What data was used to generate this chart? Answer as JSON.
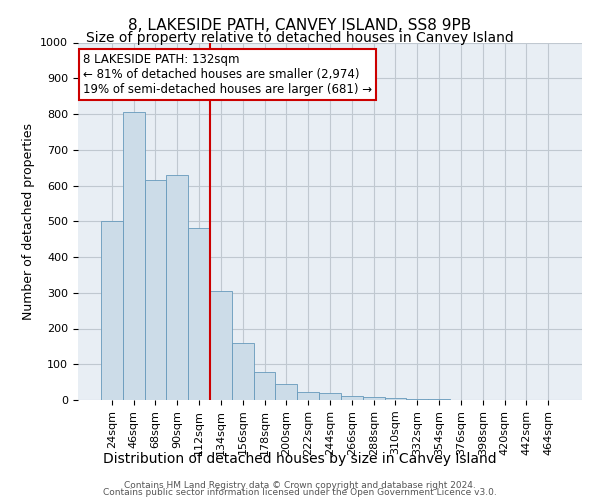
{
  "title": "8, LAKESIDE PATH, CANVEY ISLAND, SS8 9PB",
  "subtitle": "Size of property relative to detached houses in Canvey Island",
  "xlabel": "Distribution of detached houses by size in Canvey Island",
  "ylabel": "Number of detached properties",
  "footer_line1": "Contains HM Land Registry data © Crown copyright and database right 2024.",
  "footer_line2": "Contains public sector information licensed under the Open Government Licence v3.0.",
  "bar_labels": [
    "24sqm",
    "46sqm",
    "68sqm",
    "90sqm",
    "112sqm",
    "134sqm",
    "156sqm",
    "178sqm",
    "200sqm",
    "222sqm",
    "244sqm",
    "266sqm",
    "288sqm",
    "310sqm",
    "332sqm",
    "354sqm",
    "376sqm",
    "398sqm",
    "420sqm",
    "442sqm",
    "464sqm"
  ],
  "bar_values": [
    500,
    805,
    615,
    630,
    480,
    305,
    160,
    78,
    45,
    22,
    20,
    10,
    8,
    5,
    3,
    2,
    1,
    1,
    1,
    1,
    1
  ],
  "bar_color": "#ccdce8",
  "bar_edgecolor": "#6699bb",
  "annotation_line1": "8 LAKESIDE PATH: 132sqm",
  "annotation_line2": "← 81% of detached houses are smaller (2,974)",
  "annotation_line3": "19% of semi-detached houses are larger (681) →",
  "vline_index": 4.5,
  "vline_color": "#cc0000",
  "annotation_box_edgecolor": "#cc0000",
  "ylim": [
    0,
    1000
  ],
  "yticks": [
    0,
    100,
    200,
    300,
    400,
    500,
    600,
    700,
    800,
    900,
    1000
  ],
  "plot_bg_color": "#e8eef4",
  "grid_color": "#c0c8d0",
  "title_fontsize": 11,
  "subtitle_fontsize": 10,
  "xlabel_fontsize": 10,
  "ylabel_fontsize": 9,
  "tick_fontsize": 8,
  "annotation_fontsize": 8.5
}
